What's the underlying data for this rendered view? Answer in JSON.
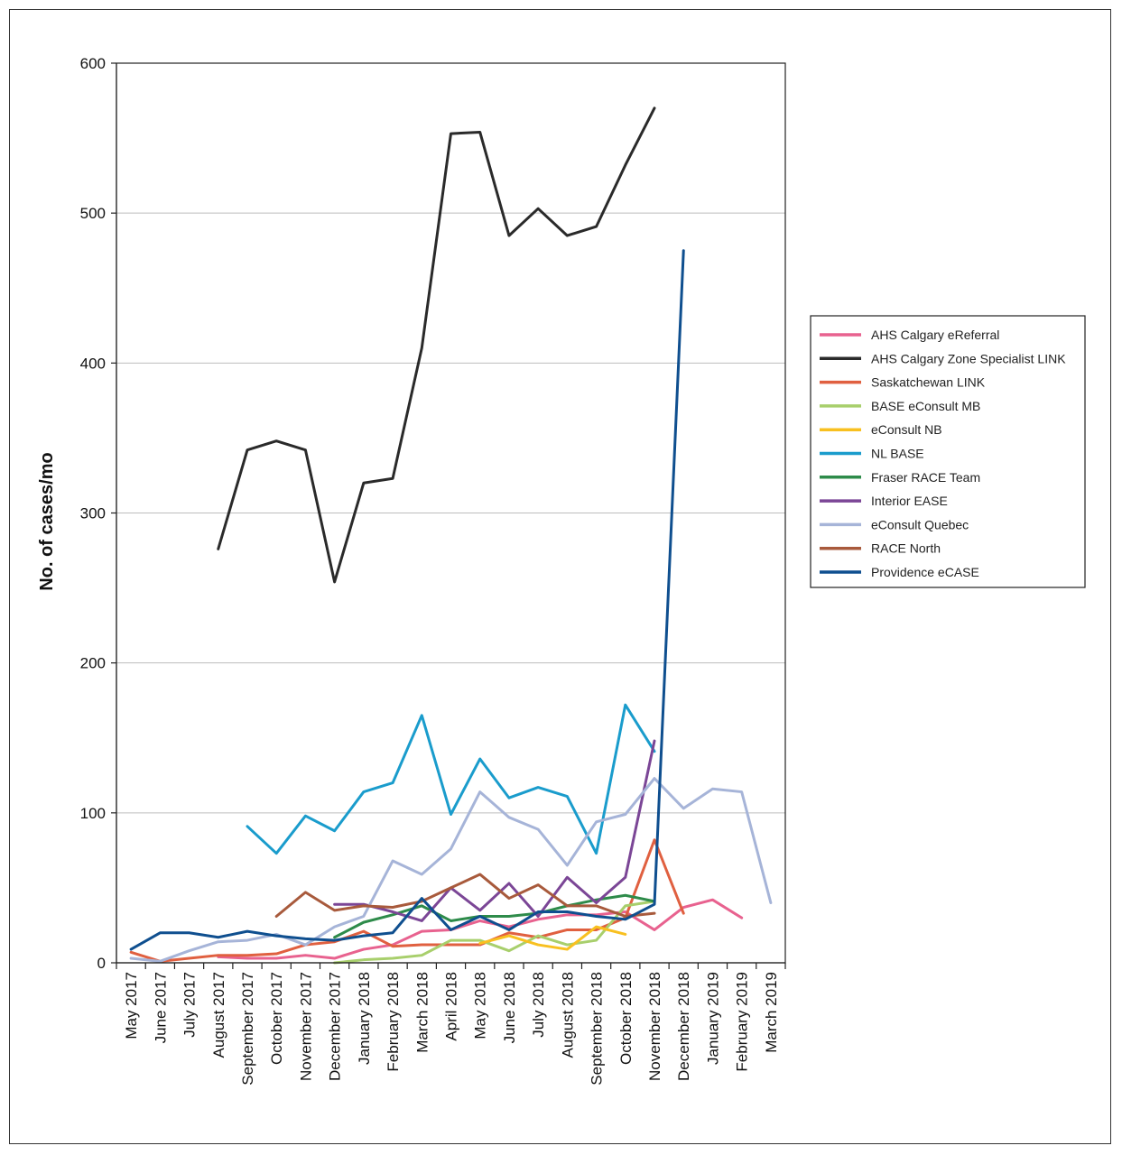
{
  "chart_data": {
    "type": "line",
    "ylabel": "No. of cases/mo",
    "ylim": [
      0,
      600
    ],
    "yticks": [
      0,
      100,
      200,
      300,
      400,
      500,
      600
    ],
    "grid": "horizontal",
    "legend_position": "right",
    "x": [
      "May 2017",
      "June 2017",
      "July 2017",
      "August 2017",
      "September 2017",
      "October 2017",
      "November 2017",
      "December 2017",
      "January 2018",
      "February 2018",
      "March 2018",
      "April 2018",
      "May 2018",
      "June 2018",
      "July 2018",
      "August 2018",
      "September 2018",
      "October 2018",
      "November 2018",
      "December 2018",
      "January 2019",
      "February 2019",
      "March 2019"
    ],
    "series": [
      {
        "name": "AHS Calgary eReferral",
        "color": "#e8628f",
        "values": [
          null,
          null,
          null,
          4,
          3,
          3,
          5,
          3,
          9,
          12,
          21,
          22,
          28,
          24,
          29,
          32,
          32,
          34,
          22,
          37,
          42,
          30,
          null
        ]
      },
      {
        "name": "AHS Calgary Zone Specialist LINK",
        "color": "#2a2a2a",
        "values": [
          null,
          null,
          null,
          276,
          342,
          348,
          342,
          254,
          320,
          323,
          410,
          553,
          554,
          485,
          503,
          485,
          491,
          532,
          570,
          null,
          null,
          null,
          null
        ]
      },
      {
        "name": "Saskatchewan LINK",
        "color": "#e06040",
        "values": [
          7,
          1,
          3,
          5,
          5,
          6,
          12,
          14,
          21,
          11,
          12,
          12,
          12,
          20,
          17,
          22,
          22,
          30,
          82,
          33,
          null,
          null,
          null
        ]
      },
      {
        "name": "BASE eConsult MB",
        "color": "#a8cf6c",
        "values": [
          null,
          null,
          null,
          null,
          null,
          null,
          null,
          0,
          2,
          3,
          5,
          15,
          15,
          8,
          18,
          12,
          15,
          38,
          41,
          null,
          null,
          null,
          null
        ]
      },
      {
        "name": "eConsult NB",
        "color": "#f8c020",
        "values": [
          null,
          null,
          null,
          null,
          null,
          null,
          null,
          null,
          null,
          null,
          null,
          null,
          13,
          18,
          12,
          9,
          24,
          19,
          null,
          null,
          null,
          null,
          null
        ]
      },
      {
        "name": "NL BASE",
        "color": "#1a9ccc",
        "values": [
          null,
          null,
          null,
          null,
          91,
          73,
          98,
          88,
          114,
          120,
          165,
          99,
          136,
          110,
          117,
          111,
          73,
          172,
          141,
          null,
          null,
          null,
          null
        ]
      },
      {
        "name": "Fraser RACE Team",
        "color": "#2e8b4a",
        "values": [
          null,
          null,
          null,
          null,
          null,
          null,
          null,
          17,
          27,
          32,
          38,
          28,
          31,
          31,
          33,
          38,
          42,
          45,
          41,
          null,
          null,
          null,
          null
        ]
      },
      {
        "name": "Interior EASE",
        "color": "#7b4696",
        "values": [
          null,
          null,
          null,
          null,
          null,
          null,
          null,
          39,
          39,
          34,
          28,
          50,
          35,
          53,
          31,
          57,
          40,
          57,
          148,
          null,
          null,
          null,
          null
        ]
      },
      {
        "name": "eConsult Quebec",
        "color": "#a6b4d8",
        "values": [
          3,
          1,
          8,
          14,
          15,
          19,
          12,
          24,
          31,
          68,
          59,
          76,
          114,
          97,
          89,
          65,
          94,
          99,
          123,
          103,
          116,
          114,
          40
        ]
      },
      {
        "name": "RACE North",
        "color": "#a85a3c",
        "values": [
          null,
          null,
          null,
          null,
          null,
          31,
          47,
          35,
          38,
          37,
          41,
          50,
          59,
          43,
          52,
          38,
          38,
          31,
          33,
          null,
          null,
          null,
          null
        ]
      },
      {
        "name": "Providence eCASE",
        "color": "#0f4f8f",
        "values": [
          9,
          20,
          20,
          17,
          21,
          18,
          16,
          15,
          18,
          20,
          43,
          22,
          31,
          22,
          34,
          34,
          31,
          29,
          39,
          475,
          null,
          null,
          null
        ]
      }
    ]
  }
}
